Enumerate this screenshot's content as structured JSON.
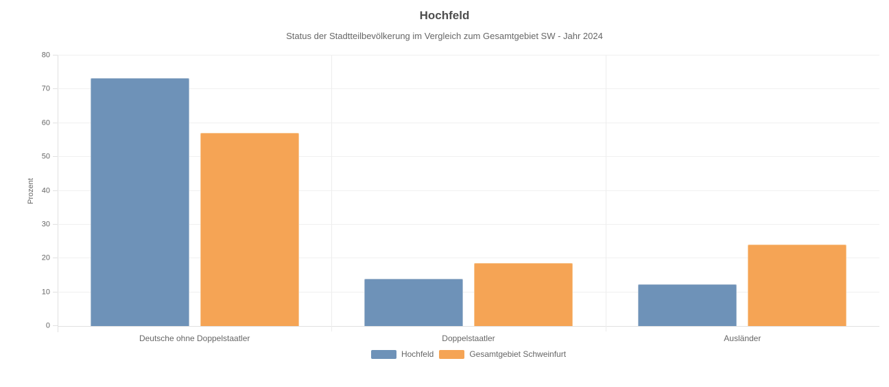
{
  "chart_data": {
    "type": "bar",
    "title": "Hochfeld",
    "subtitle": "Status der Stadtteilbevölkerung im Vergleich zum Gesamtgebiet SW - Jahr 2024",
    "categories": [
      "Deutsche ohne Doppelstaatler",
      "Doppelstaatler",
      "Ausländer"
    ],
    "series": [
      {
        "name": "Hochfeld",
        "color": "#6e92b8",
        "border_color": "#a9bdd2",
        "values": [
          73.4,
          14.0,
          12.4
        ]
      },
      {
        "name": "Gesamtgebiet Schweinfurt",
        "color": "#f5a455",
        "border_color": "#f8c894",
        "values": [
          57.2,
          18.7,
          24.1
        ]
      }
    ],
    "xlabel": "",
    "ylabel": "Prozent",
    "ylim": [
      0,
      80
    ],
    "ytick_step": 10,
    "ytick_labels": [
      "0",
      "10",
      "20",
      "30",
      "40",
      "50",
      "60",
      "70",
      "80"
    ],
    "grid": true,
    "legend_position": "bottom",
    "colors": {
      "background": "#ffffff",
      "gridline": "#f0f0f0",
      "axis_line": "#e0e0e0",
      "title_text": "#4d4d4d",
      "text": "#666666"
    }
  }
}
